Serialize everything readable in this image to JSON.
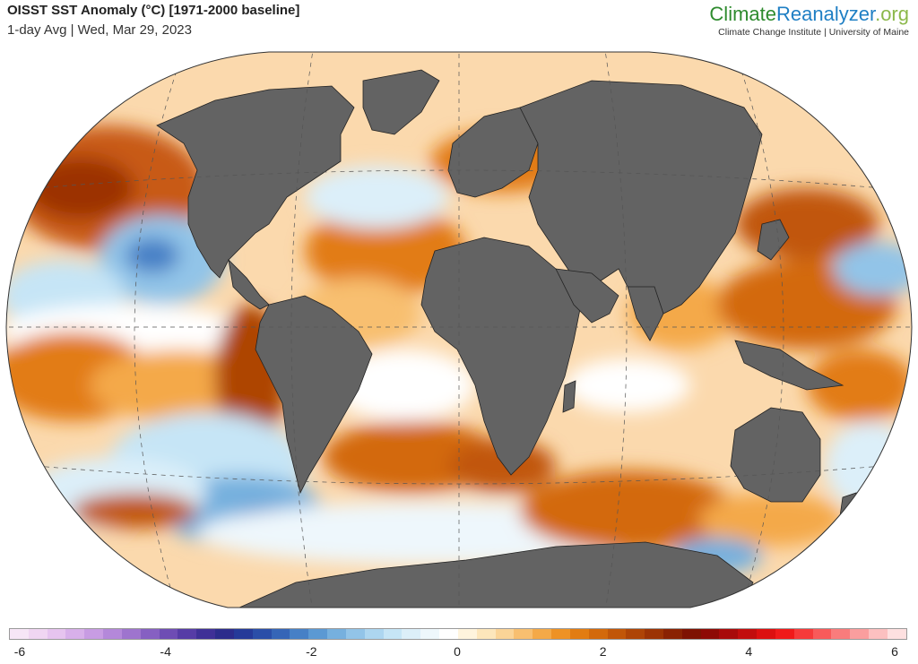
{
  "header": {
    "title": "OISST SST Anomaly (°C) [1971-2000 baseline]",
    "subtitle": "1-day Avg | Wed, Mar 29, 2023"
  },
  "brand": {
    "part1": "Climate",
    "part2": "Reanalyzer",
    "part3": ".org",
    "sub": "Climate Change Institute | University of Maine"
  },
  "colorbar": {
    "ticks": [
      "-6",
      "-4",
      "-2",
      "0",
      "2",
      "4",
      "6"
    ],
    "tick_values": [
      -6,
      -4,
      -2,
      0,
      2,
      4,
      6
    ],
    "range": [
      -6,
      6
    ],
    "colors": [
      "#f7e6f7",
      "#f0d6f2",
      "#e6c4ef",
      "#d8b0ea",
      "#c89ce3",
      "#b488da",
      "#9e74ce",
      "#8660c2",
      "#6e4db4",
      "#563ca6",
      "#3f3097",
      "#2c2c8c",
      "#253a99",
      "#2a4ea8",
      "#3565b7",
      "#4680c6",
      "#5b99d3",
      "#76b0de",
      "#92c4e8",
      "#add6f0",
      "#c6e5f6",
      "#dceff9",
      "#eef7fc",
      "#ffffff",
      "#fff4dd",
      "#fde6bb",
      "#fbd497",
      "#f8bf70",
      "#f4a948",
      "#ee9225",
      "#e27c12",
      "#d3690b",
      "#c15608",
      "#ae4406",
      "#9c3304",
      "#8a2203",
      "#7e1202",
      "#8e0a05",
      "#a80a0a",
      "#c20d0d",
      "#dc1010",
      "#f01a1a",
      "#f63a3a",
      "#f85a5a",
      "#f97c7c",
      "#fa9e9e",
      "#fcc0c0",
      "#fee0e0"
    ]
  },
  "map": {
    "projection": "Robinson",
    "land_color": "#636363",
    "ocean_anomaly": "sea surface temperature anomaly shading"
  }
}
